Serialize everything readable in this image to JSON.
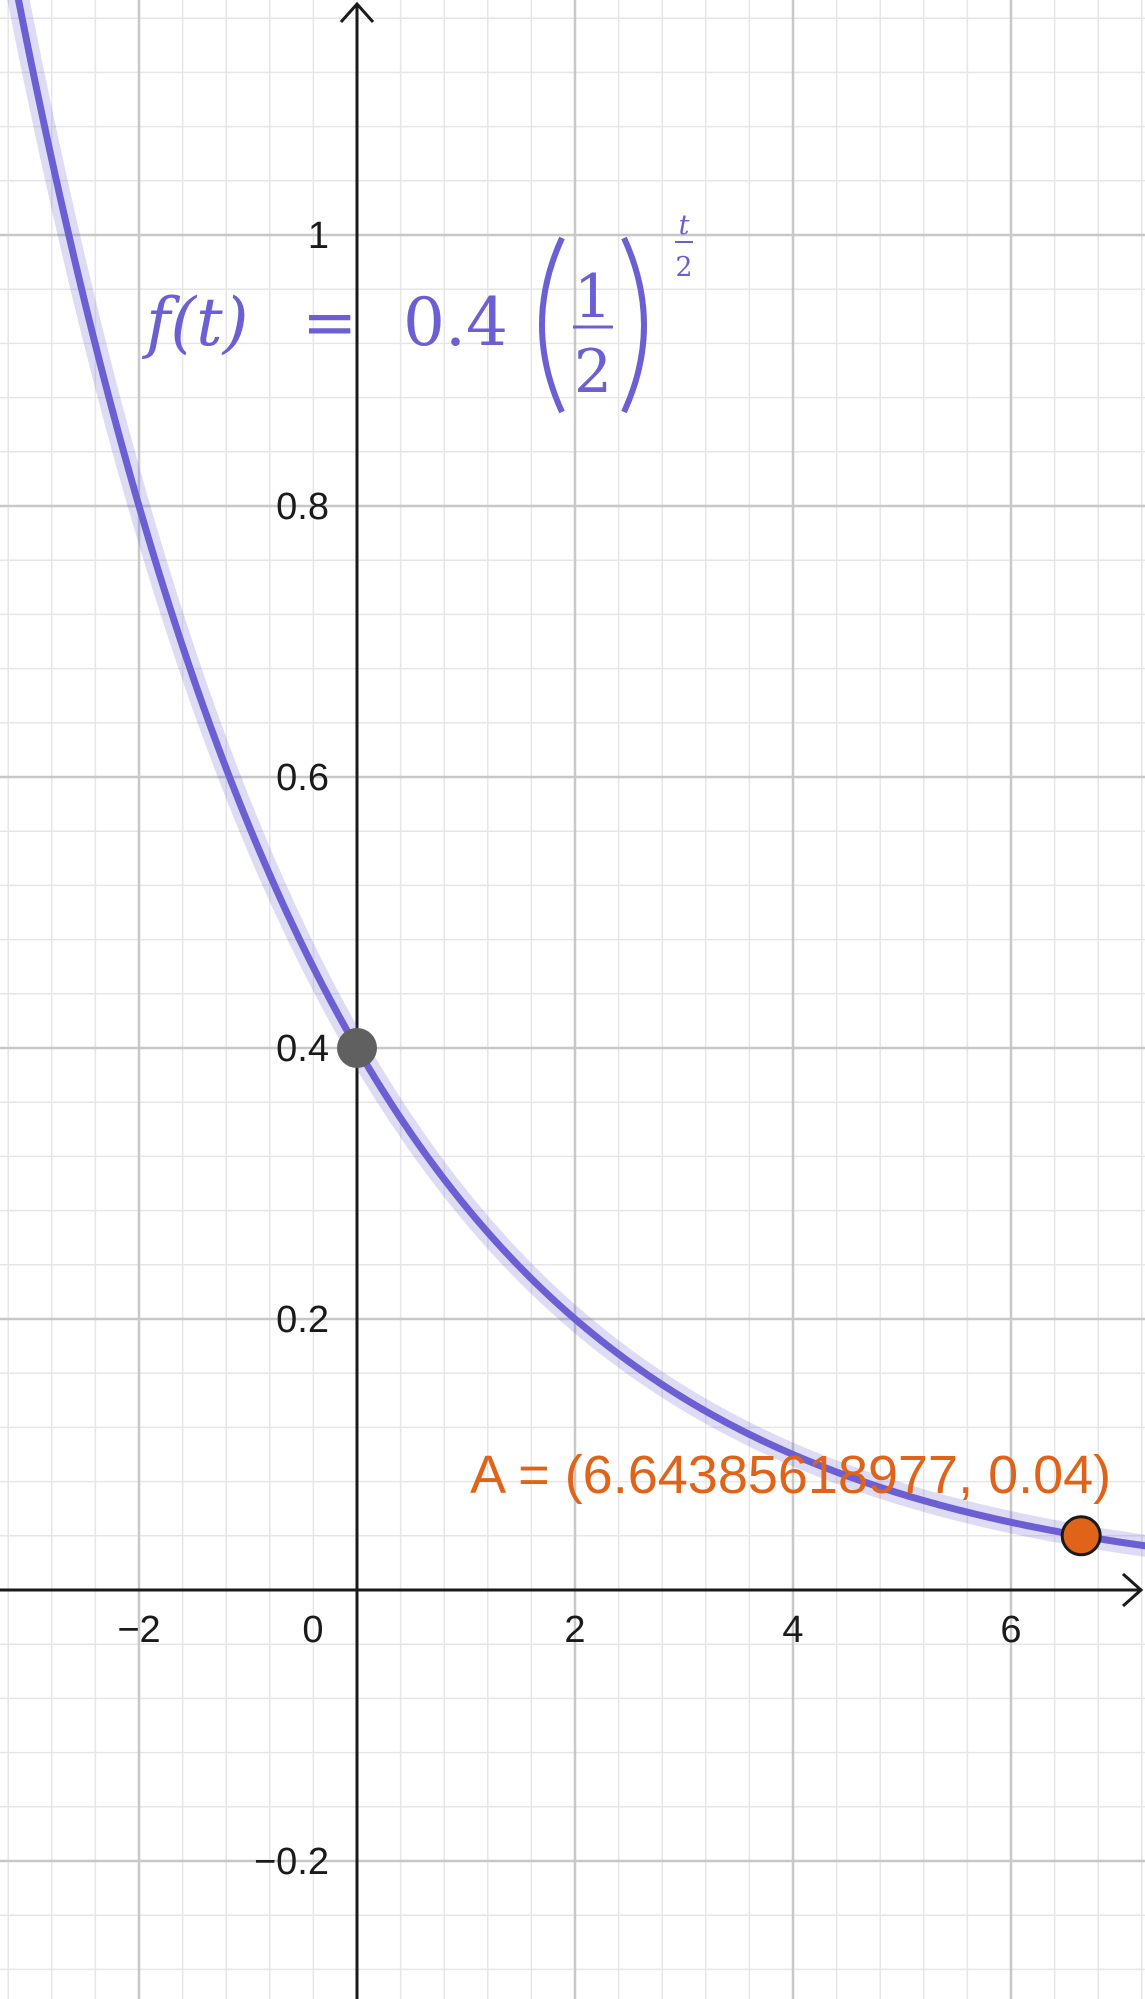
{
  "chart_data": {
    "type": "line",
    "title": "",
    "xlabel": "",
    "ylabel": "",
    "xlim": [
      -3.27,
      7.23
    ],
    "ylim": [
      -0.3,
      1.17
    ],
    "x_ticks": [
      {
        "value": -2,
        "label": "−2"
      },
      {
        "value": 0,
        "label": "0"
      },
      {
        "value": 2,
        "label": "2"
      },
      {
        "value": 4,
        "label": "4"
      },
      {
        "value": 6,
        "label": "6"
      }
    ],
    "y_ticks": [
      {
        "value": -0.2,
        "label": "−0.2"
      },
      {
        "value": 0.2,
        "label": "0.2"
      },
      {
        "value": 0.4,
        "label": "0.4"
      },
      {
        "value": 0.6,
        "label": "0.6"
      },
      {
        "value": 0.8,
        "label": "0.8"
      },
      {
        "value": 1,
        "label": "1"
      }
    ],
    "grid": true,
    "series": [
      {
        "name": "f(t) = 0.4 (1/2)^(t/2)",
        "function": {
          "a": 0.4,
          "base": 0.5,
          "exponent_divisor": 2
        },
        "x_range": [
          -3.27,
          7.23
        ],
        "color": "#6b5fd3"
      }
    ],
    "points": [
      {
        "x": 0,
        "y": 0.4,
        "color": "#606060",
        "label": ""
      },
      {
        "x": 6.64385618977,
        "y": 0.04,
        "color": "#e0631a",
        "label": "A = (6.64385618977, 0.04)"
      }
    ]
  },
  "formula": {
    "lhs": "f(t)",
    "equals": "=",
    "coefficient": "0.4",
    "numerator": "1",
    "denominator": "2",
    "exp_numerator": "t",
    "exp_denominator": "2"
  }
}
